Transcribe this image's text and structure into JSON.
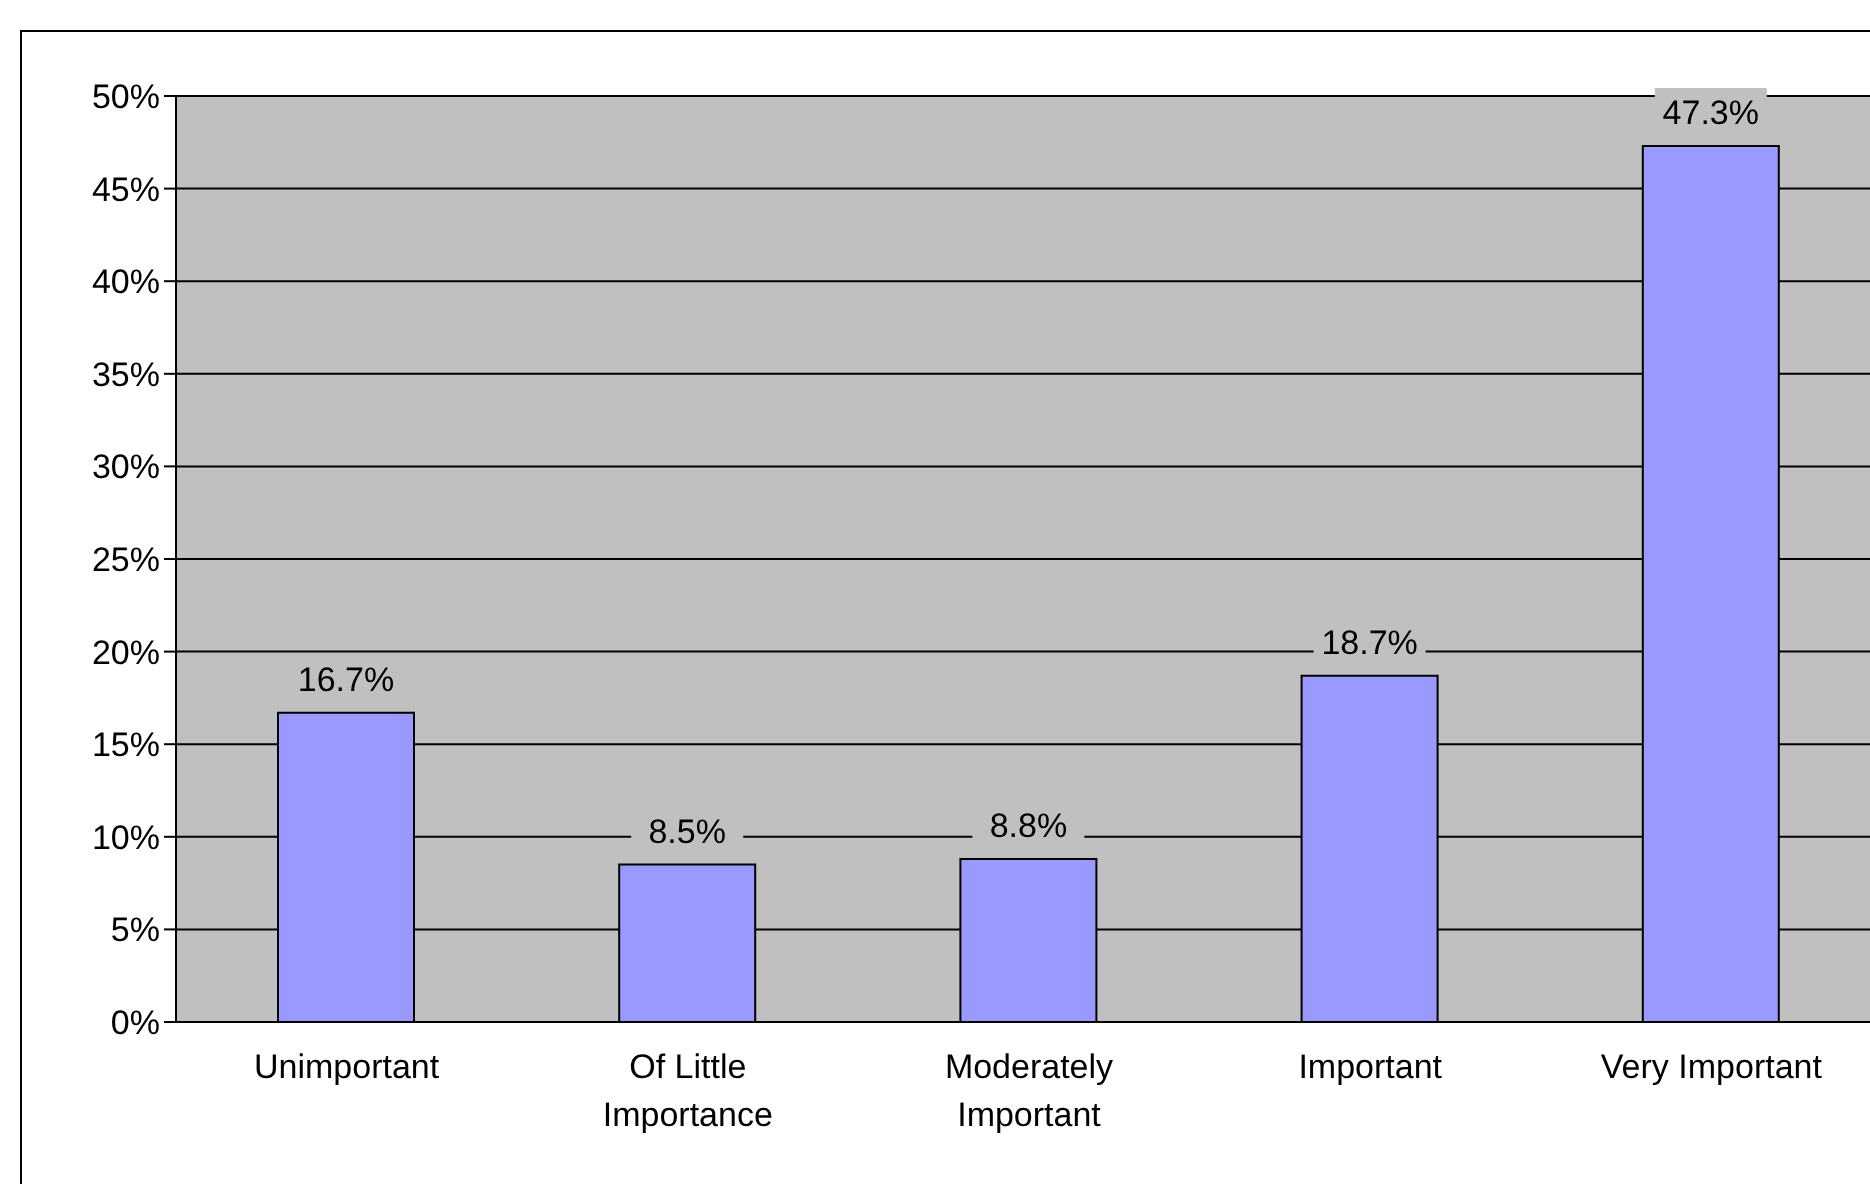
{
  "chart_data": {
    "type": "bar",
    "categories": [
      "Unimportant",
      "Of Little Importance",
      "Moderately Important",
      "Important",
      "Very Important"
    ],
    "values": [
      16.7,
      8.5,
      8.8,
      18.7,
      47.3
    ],
    "value_labels": [
      "16.7%",
      "8.5%",
      "8.8%",
      "18.7%",
      "47.3%"
    ],
    "color": "#9999ff",
    "ylim": [
      0,
      50
    ],
    "yticks": [
      {
        "value": 0,
        "label": "0%"
      },
      {
        "value": 5,
        "label": "5%"
      },
      {
        "value": 10,
        "label": "10%"
      },
      {
        "value": 15,
        "label": "15%"
      },
      {
        "value": 20,
        "label": "20%"
      },
      {
        "value": 25,
        "label": "25%"
      },
      {
        "value": 30,
        "label": "30%"
      },
      {
        "value": 35,
        "label": "35%"
      },
      {
        "value": 40,
        "label": "40%"
      },
      {
        "value": 45,
        "label": "45%"
      },
      {
        "value": 50,
        "label": "50%"
      }
    ],
    "grid": "y"
  }
}
